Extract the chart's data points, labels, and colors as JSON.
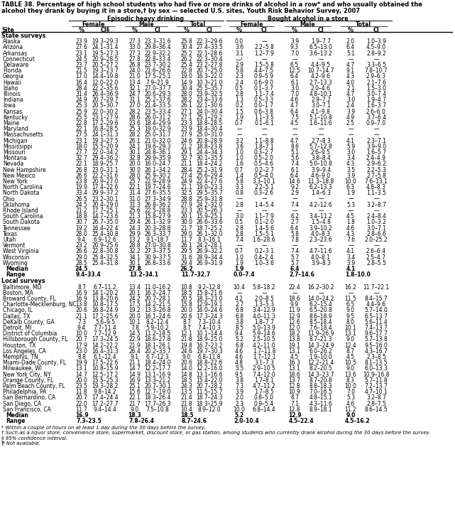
{
  "title_line1": "TABLE 38. Percentage of high school students who had five or more drinks of alcohol in a row* and who usually obtained the",
  "title_line2": "alcohol they drank by buying it in a store,† by sex — selected U.S. sites, Youth Risk Behavior Survey, 2007",
  "state_section": "State surveys",
  "state_rows": [
    [
      "Alaska",
      "23.9",
      "19.3–29.3",
      "27.3",
      "23.3–31.6",
      "25.8",
      "22.3–29.6",
      "0.0",
      "—",
      "3.9",
      "1.9–7.7",
      "2.0",
      "1.0–3.9"
    ],
    [
      "Arizona",
      "27.6",
      "24.1–31.4",
      "33.0",
      "29.8–36.4",
      "30.4",
      "27.4–33.5",
      "3.6",
      "2.2–5.8",
      "9.3",
      "6.5–13.0",
      "6.4",
      "4.5–9.0"
    ],
    [
      "Arkansas",
      "23.1",
      "19.5–27.3",
      "27.3",
      "22.9–32.2",
      "25.2",
      "22.1–28.6",
      "3.1",
      "1.2–7.9",
      "7.0",
      "3.6–13.2",
      "5.1",
      "2.8–9.2"
    ],
    [
      "Connecticut",
      "24.5",
      "20.9–28.5",
      "27.8",
      "22.8–33.4",
      "26.2",
      "22.3–30.4",
      "—¹",
      "—",
      "—",
      "—",
      "—",
      "—"
    ],
    [
      "Delaware",
      "23.7",
      "20.5–27.2",
      "26.8",
      "23.7–30.2",
      "25.4",
      "23.2–27.8",
      "2.9",
      "1.5–5.8",
      "6.5",
      "4.4–9.5",
      "4.7",
      "3.3–6.5"
    ],
    [
      "Florida",
      "21.5",
      "19.3–23.7",
      "24.0",
      "21.6–26.6",
      "22.8",
      "20.7–25.0",
      "5.8",
      "4.4–7.5",
      "12.5",
      "10.7–14.7",
      "9.1",
      "7.8–10.7"
    ],
    [
      "Georgia",
      "17.0",
      "14.4–19.8",
      "21.0",
      "17.5–25.1",
      "19.0",
      "16.3–22.0",
      "2.3",
      "0.9–5.9",
      "6.4",
      "4.2–9.6",
      "4.3",
      "2.9–6.3"
    ],
    [
      "Hawaii",
      "16.4",
      "12.0–22.0",
      "13.4",
      "7.9–21.9",
      "14.9",
      "10.3–21.0",
      "2.4",
      "0.6–9.0",
      "6.1",
      "2.7–13.3",
      "4.0",
      "2.1–7.6"
    ],
    [
      "Idaho",
      "28.4",
      "22.2–35.6",
      "32.1",
      "27.0–37.7",
      "30.4",
      "25.5–35.7",
      "0.5",
      "0.1–3.7",
      "3.0",
      "2.0–4.6",
      "2.1",
      "1.5–3.0"
    ],
    [
      "Illinois",
      "31.4",
      "26.4–36.9",
      "24.7",
      "20.6–29.3",
      "28.0",
      "23.9–32.5",
      "2.8",
      "1.1–7.4",
      "7.0",
      "4.8–10.1",
      "4.7",
      "3.0–7.4"
    ],
    [
      "Indiana",
      "24.9",
      "20.7–29.7",
      "31.1",
      "25.2–37.6",
      "28.2",
      "23.4–33.6",
      "1.3",
      "0.5–3.3",
      "4.6",
      "2.9–7.2",
      "3.0",
      "1.9–4.7"
    ],
    [
      "Iowa",
      "25.3",
      "20.5–30.7",
      "27.0",
      "21.4–33.5",
      "26.1",
      "22.1–30.6",
      "0.2",
      "0.0–1.7",
      "4.7",
      "3.0–7.1",
      "2.4",
      "1.6–3.7"
    ],
    [
      "Kansas",
      "25.9",
      "22.0–30.2",
      "28.2",
      "23.5–33.4",
      "27.1",
      "24.0–30.4",
      "1.5",
      "0.6–3.8",
      "6.4",
      "4.1–9.8",
      "3.9",
      "2.6–6.0"
    ],
    [
      "Kentucky",
      "25.5",
      "23.1–27.9",
      "28.6",
      "26.0–31.2",
      "27.1",
      "25.1–29.2",
      "1.9",
      "1.1–3.5",
      "7.5",
      "5.1–10.8",
      "4.9",
      "3.7–6.4"
    ],
    [
      "Maine",
      "22.8",
      "17.2–29.6",
      "23.6",
      "18.4–29.9",
      "23.3",
      "18.8–28.5",
      "0.7",
      "0.1–6.1",
      "4.5",
      "1.6–11.6",
      "2.5",
      "0.9–7.0"
    ],
    [
      "Maryland",
      "22.1",
      "16.8–28.5",
      "25.3",
      "19.0–32.9",
      "23.9",
      "18.4–30.4",
      "—",
      "—",
      "—",
      "—",
      "—",
      "—"
    ],
    [
      "Massachusetts",
      "27.5",
      "24.1–31.3",
      "28.2",
      "25.0–31.7",
      "27.9",
      "25.0–31.0",
      "—",
      "—",
      "—",
      "—",
      "—",
      "—"
    ],
    [
      "Michigan",
      "23.1",
      "19.3–27.5",
      "26.1",
      "21.0–32.0",
      "24.6",
      "20.8–28.9",
      "3.2",
      "1.1–8.8",
      "4.7",
      "2.7–8.3",
      "4.1",
      "2.3–7.1"
    ],
    [
      "Mississippi",
      "18.0",
      "15.5–20.9",
      "24.1",
      "19.6–29.3",
      "21.2",
      "18.8–23.8",
      "3.6",
      "1.8–7.1",
      "8.6",
      "5.7–12.8",
      "5.9",
      "3.9–9.0"
    ],
    [
      "Missouri",
      "27.7",
      "22.0–34.2",
      "30.1",
      "24.8–36.1",
      "29.1",
      "24.4–34.3",
      "1.0",
      "0.3–2.7",
      "5.1",
      "2.6–9.5",
      "3.0",
      "1.6–5.7"
    ],
    [
      "Montana",
      "32.7",
      "29.4–36.2",
      "32.8",
      "29.9–35.9",
      "32.7",
      "30.1–35.5",
      "1.0",
      "0.5–2.0",
      "5.6",
      "3.8–8.4",
      "3.4",
      "2.4–4.9"
    ],
    [
      "Nevada",
      "22.1",
      "18.9–25.7",
      "20.0",
      "16.0–24.7",
      "21.1",
      "18.4–24.2",
      "1.6",
      "0.5–4.6",
      "7.4",
      "5.0–10.8",
      "4.3",
      "2.9–6.2"
    ],
    [
      "New Hampshire",
      "26.8",
      "23.0–31.1",
      "30.0",
      "26.1–34.2",
      "28.4",
      "25.2–31.9",
      "0.7",
      "0.2–2.7",
      "6.1",
      "3.9–9.4",
      "3.5",
      "2.2–5.3"
    ],
    [
      "New Mexico",
      "26.6",
      "22.2–31.6",
      "28.0",
      "25.9–30.2",
      "27.4",
      "25.6–29.4",
      "1.4",
      "0.5–4.0",
      "6.4",
      "4.6–9.0",
      "3.9",
      "2.7–5.8"
    ],
    [
      "New York",
      "23.8",
      "20.9–27.0",
      "25.7",
      "22.9–28.9",
      "24.9",
      "22.4–27.6",
      "5.8",
      "3.3–10.1",
      "14.6",
      "11.3–18.8",
      "10.0",
      "7.6–13.1"
    ],
    [
      "North Carolina",
      "19.9",
      "17.4–22.6",
      "22.1",
      "19.7–24.6",
      "21.1",
      "19.0–23.3",
      "3.3",
      "2.2–5.1",
      "9.2",
      "6.2–13.3",
      "6.3",
      "4.8–8.3"
    ],
    [
      "North Dakota",
      "33.4",
      "29.9–37.2",
      "31.4",
      "27.6–35.5",
      "32.5",
      "29.5–35.7",
      "0.8",
      "0.3–2.6",
      "2.9",
      "1.4–6.3",
      "1.9",
      "1.1–3.5"
    ],
    [
      "Ohio",
      "26.5",
      "23.2–30.1",
      "31.0",
      "27.3–34.9",
      "28.8",
      "25.9–31.8",
      "—",
      "—",
      "—",
      "—",
      "—",
      "—"
    ],
    [
      "Oklahoma",
      "24.5",
      "20.4–29.0",
      "31.3",
      "26.8–36.2",
      "27.9",
      "24.2–32.0",
      "2.8",
      "1.4–5.4",
      "7.4",
      "4.2–12.6",
      "5.3",
      "3.2–8.7"
    ],
    [
      "Rhode Island",
      "21.2",
      "17.7–25.1",
      "25.6",
      "22.5–28.8",
      "23.3",
      "20.5–26.3",
      "—",
      "—",
      "—",
      "—",
      "—",
      "—"
    ],
    [
      "South Carolina",
      "18.8",
      "14.7–23.6",
      "21.3",
      "15.8–27.9",
      "20.1",
      "15.9–25.1",
      "3.0",
      "1.1–7.9",
      "6.2",
      "3.4–11.2",
      "4.5",
      "2.4–8.4"
    ],
    [
      "South Dakota",
      "30.7",
      "26.7–35.0",
      "29.4",
      "26.1–32.9",
      "30.0",
      "26.6–33.6",
      "0.5",
      "0.1–2.0",
      "2.7",
      "1.5–4.8",
      "1.8",
      "1.0–3.2"
    ],
    [
      "Tennessee",
      "19.2",
      "16.4–22.4",
      "24.3",
      "20.3–28.8",
      "21.7",
      "18.7–25.2",
      "2.8",
      "1.4–5.6",
      "6.4",
      "3.9–10.2",
      "4.6",
      "3.0–7.1"
    ],
    [
      "Texas",
      "28.0",
      "25.4–30.8",
      "29.9",
      "26.3–33.7",
      "29.0",
      "26.1–32.0",
      "2.8",
      "1.5–5.1",
      "5.8",
      "4.0–8.3",
      "4.3",
      "2.8–6.6"
    ],
    [
      "Utah",
      "9.4",
      "6.9–12.6",
      "13.2",
      "9.1–18.7",
      "11.7",
      "8.3–16.1",
      "7.4",
      "1.6–28.6",
      "7.8",
      "2.3–23.6",
      "7.6",
      "2.0–25.2"
    ],
    [
      "Vermont",
      "23.2",
      "20.9–25.6",
      "28.8",
      "27.0–30.8",
      "26.1",
      "24.2–28.1",
      "—",
      "—",
      "—",
      "—",
      "—",
      "—"
    ],
    [
      "West Virginia",
      "26.6",
      "22.8–30.8",
      "32.2",
      "27.3–37.5",
      "29.5",
      "26.9–32.2",
      "0.7",
      "0.2–3.1",
      "7.4",
      "4.7–11.6",
      "4.1",
      "2.6–6.4"
    ],
    [
      "Wisconsin",
      "29.0",
      "25.8–32.5",
      "34.1",
      "30.9–37.5",
      "31.6",
      "28.9–34.4",
      "1.0",
      "0.4–2.4",
      "5.7",
      "4.0–8.1",
      "3.4",
      "2.5–4.7"
    ],
    [
      "Wyoming",
      "28.5",
      "25.4–31.8",
      "30.1",
      "26.8–33.6",
      "29.4",
      "26.9–31.9",
      "1.9",
      "1.0–3.6",
      "5.7",
      "3.9–8.3",
      "3.9",
      "2.8–5.5"
    ],
    [
      "Median",
      "24.5",
      "",
      "27.8",
      "",
      "26.2",
      "",
      "1.9",
      "",
      "6.4",
      "",
      "4.1",
      ""
    ],
    [
      "Range",
      "9.4–33.4",
      "",
      "13.2–34.1",
      "",
      "11.7–32.7",
      "",
      "0.0–7.4",
      "",
      "2.7–14.6",
      "",
      "1.8–10.0",
      ""
    ]
  ],
  "local_section": "Local surveys",
  "local_rows": [
    [
      "Baltimore, MD",
      "8.7",
      "6.7–11.2",
      "13.4",
      "11.0–16.2",
      "10.8",
      "9.2–12.8",
      "10.4",
      "5.8–18.2",
      "22.4",
      "16.2–30.2",
      "16.2",
      "11.7–22.1"
    ],
    [
      "Boston, MA",
      "16.9",
      "14.1–20.2",
      "20.1",
      "16.2–24.7",
      "18.5",
      "15.8–21.6",
      "—",
      "—",
      "—",
      "—",
      "—",
      "—"
    ],
    [
      "Broward County, FL",
      "16.9",
      "13.8–20.6",
      "24.2",
      "20.7–28.1",
      "20.5",
      "18.3–23.0",
      "4.2",
      "2.0–8.5",
      "18.6",
      "14.0–24.2",
      "11.5",
      "8.4–15.7"
    ],
    [
      "Charlotte-Mecklenburg, NC",
      "13.8",
      "10.8–17.5",
      "17.5",
      "14.2–21.5",
      "15.8",
      "12.9–19.1",
      "2.7",
      "1.3–5.3",
      "9.9",
      "6.2–15.4",
      "6.5",
      "4.4–9.6"
    ],
    [
      "Chicago, IL",
      "20.6",
      "16.8–24.9",
      "19.2",
      "13.3–26.8",
      "20.0",
      "16.0–24.6",
      "6.8",
      "3.4–12.9",
      "11.9",
      "6.5–20.8",
      "9.0",
      "5.7–14.0"
    ],
    [
      "Dallas, TX",
      "21.1",
      "17.2–25.6",
      "20.0",
      "16.1–24.6",
      "20.6",
      "17.3–24.3",
      "6.8",
      "4.0–11.3",
      "12.9",
      "8.6–18.9",
      "9.5",
      "6.5–13.7"
    ],
    [
      "DeKalb County, GA",
      "7.3",
      "5.6–9.5",
      "10.1",
      "8.2–12.4",
      "8.7",
      "7.3–10.4",
      "3.8",
      "1.8–7.7",
      "12.6",
      "8.5–18.4",
      "8.0",
      "5.6–11.4"
    ],
    [
      "Detroit, MI",
      "9.4",
      "7.7–11.4",
      "7.8",
      "5.9–10.2",
      "8.7",
      "7.4–10.3",
      "8.5",
      "5.0–13.9",
      "12.0",
      "7.6–18.4",
      "10.1",
      "7.4–13.7"
    ],
    [
      "District of Columbia",
      "10.0",
      "7.7–12.9",
      "14.5",
      "11.2–18.5",
      "12.1",
      "10.1–14.4",
      "9.4",
      "5.9–14.6",
      "18.2",
      "11.9–26.9",
      "13.1",
      "9.6–17.7"
    ],
    [
      "Hillsborough County, FL",
      "20.7",
      "17.3–24.5",
      "22.9",
      "18.6–27.8",
      "21.8",
      "18.9–25.0",
      "5.2",
      "2.5–10.5",
      "13.8",
      "8.7–21.3",
      "9.0",
      "5.7–13.8"
    ],
    [
      "Houston, TX",
      "17.9",
      "14.2–22.2",
      "21.9",
      "18.1–26.1",
      "19.8",
      "16.7–23.2",
      "6.8",
      "4.2–11.0",
      "19.1",
      "14.3–24.9",
      "12.4",
      "9.5–16.0"
    ],
    [
      "Los Angeles, CA",
      "23.0",
      "16.4–31.3",
      "26.4",
      "20.2–33.7",
      "24.6",
      "19.7–30.3",
      "4.6",
      "1.7–11.8",
      "13.1",
      "6.0–26.2",
      "8.7",
      "4.3–16.7"
    ],
    [
      "Memphis, TN",
      "8.8",
      "6.1–12.4",
      "9.1",
      "6.7–12.3",
      "9.0",
      "6.8–11.8",
      "4.6",
      "1.7–12.1",
      "4.5",
      "1.9–10.0",
      "4.5",
      "2.3–8.5"
    ],
    [
      "Miami-Dade County, FL",
      "19.9",
      "17.5–22.6",
      "21.1",
      "18.4–24.0",
      "20.6",
      "18.8–22.6",
      "4.8",
      "3.1–7.3",
      "16.3",
      "12.2–21.4",
      "10.5",
      "8.1–13.5"
    ],
    [
      "Milwaukee, WI",
      "13.1",
      "10.8–15.9",
      "14.7",
      "12.2–17.7",
      "14.0",
      "12.2–16.0",
      "5.5",
      "2.9–10.5",
      "13.1",
      "8.2–20.5",
      "9.0",
      "6.0–13.3"
    ],
    [
      "New York City, NY",
      "14.7",
      "12.5–17.2",
      "14.9",
      "13.1–16.9",
      "14.8",
      "13.1–16.6",
      "9.5",
      "7.4–12.0",
      "18.6",
      "14.3–23.7",
      "13.6",
      "10.9–16.8"
    ],
    [
      "Orange County, FL",
      "20.0",
      "15.5–25.3",
      "16.9",
      "13.3–21.2",
      "18.5",
      "15.4–22.0",
      "3.8",
      "1.7–8.1",
      "13.7",
      "8.7–20.8",
      "8.3",
      "5.7–11.8"
    ],
    [
      "Palm Beach County, FL",
      "23.5",
      "19.3–28.2",
      "25.1",
      "20.7–30.1",
      "24.3",
      "20.7–28.2",
      "7.3",
      "4.7–11.2",
      "12.8",
      "8.8–18.3",
      "10.0",
      "7.2–13.7"
    ],
    [
      "Philadelphia, PA",
      "11.8",
      "9.8–14.2",
      "15.6",
      "12.7–19.0",
      "13.5",
      "11.5–15.7",
      "3.9",
      "1.7–8.5",
      "10.9",
      "7.0–16.5",
      "7.0",
      "4.7–10.1"
    ],
    [
      "San Bernardino, CA",
      "20.7",
      "17.4–24.4",
      "22.1",
      "18.3–26.4",
      "21.4",
      "18.7–24.3",
      "2.0",
      "0.8–5.0",
      "8.7",
      "4.8–15.1",
      "5.3",
      "3.2–8.7"
    ],
    [
      "San Diego, CA",
      "22.0",
      "17.2–27.7",
      "21.7",
      "17.7–26.3",
      "21.8",
      "18.3–25.9",
      "2.3",
      "0.9–5.4",
      "7.1",
      "4.3–11.6",
      "4.6",
      "2.8–7.5"
    ],
    [
      "San Francisco, CA",
      "11.7",
      "9.4–14.4",
      "9.0",
      "7.5–10.8",
      "10.4",
      "8.9–12.0",
      "10.0",
      "6.8–14.4",
      "12.8",
      "8.9–18.1",
      "11.2",
      "8.6–14.5"
    ],
    [
      "Median",
      "16.9",
      "",
      "18.3",
      "",
      "18.5",
      "",
      "5.2",
      "",
      "12.9",
      "",
      "9.0",
      ""
    ],
    [
      "Range",
      "7.3–23.5",
      "",
      "7.8–26.4",
      "",
      "8.7–24.6",
      "",
      "2.0–10.4",
      "",
      "4.5–22.4",
      "",
      "4.5–16.2",
      ""
    ]
  ],
  "footnotes": [
    "* Within a couple of hours on at least 1 day during the 30 days before the survey.",
    "† Such as a liquor store, convenience store, supermarket, discount store, or gas station, among students who currently drank alcohol during the 30 days before the survey.",
    "§ 95% confidence interval.",
    "¶ Not available."
  ]
}
